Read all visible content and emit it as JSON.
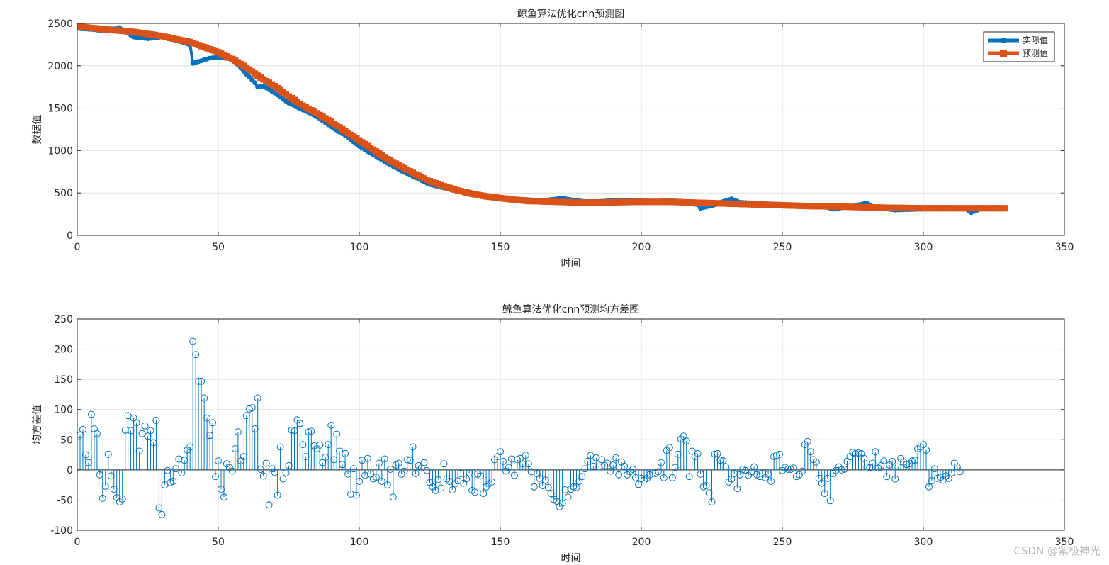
{
  "colors": {
    "actual": "#0072BD",
    "predicted": "#D95319",
    "stem": "#0072BD"
  },
  "watermark": "CSDN @紫极神光",
  "chart_data": [
    {
      "type": "line",
      "title": "鲸鱼算法优化cnn预测图",
      "xlabel": "时间",
      "ylabel": "数据值",
      "xlim": [
        0,
        350
      ],
      "ylim": [
        0,
        2500
      ],
      "xticks": [
        0,
        50,
        100,
        150,
        200,
        250,
        300,
        350
      ],
      "yticks": [
        0,
        500,
        1000,
        1500,
        2000,
        2500
      ],
      "grid": true,
      "legend_position": "top-right",
      "x_start": 1,
      "x_step": 1,
      "series": [
        {
          "name": "实际值",
          "marker": "circle",
          "anchors": [
            [
              1,
              2440
            ],
            [
              5,
              2430
            ],
            [
              10,
              2410
            ],
            [
              15,
              2450
            ],
            [
              20,
              2340
            ],
            [
              25,
              2320
            ],
            [
              30,
              2340
            ],
            [
              35,
              2300
            ],
            [
              40,
              2250
            ],
            [
              41,
              2030
            ],
            [
              43,
              2050
            ],
            [
              47,
              2090
            ],
            [
              50,
              2100
            ],
            [
              55,
              2080
            ],
            [
              60,
              1900
            ],
            [
              63,
              1800
            ],
            [
              64,
              1750
            ],
            [
              66,
              1760
            ],
            [
              70,
              1680
            ],
            [
              75,
              1560
            ],
            [
              80,
              1480
            ],
            [
              85,
              1400
            ],
            [
              90,
              1280
            ],
            [
              95,
              1180
            ],
            [
              100,
              1050
            ],
            [
              105,
              950
            ],
            [
              110,
              850
            ],
            [
              115,
              760
            ],
            [
              120,
              680
            ],
            [
              125,
              600
            ],
            [
              130,
              560
            ],
            [
              135,
              520
            ],
            [
              140,
              490
            ],
            [
              145,
              470
            ],
            [
              150,
              450
            ],
            [
              155,
              430
            ],
            [
              160,
              420
            ],
            [
              165,
              410
            ],
            [
              170,
              430
            ],
            [
              172,
              440
            ],
            [
              175,
              420
            ],
            [
              180,
              400
            ],
            [
              185,
              400
            ],
            [
              190,
              410
            ],
            [
              195,
              410
            ],
            [
              200,
              410
            ],
            [
              205,
              400
            ],
            [
              210,
              410
            ],
            [
              215,
              400
            ],
            [
              220,
              360
            ],
            [
              221,
              320
            ],
            [
              225,
              350
            ],
            [
              230,
              410
            ],
            [
              232,
              430
            ],
            [
              235,
              390
            ],
            [
              240,
              380
            ],
            [
              245,
              370
            ],
            [
              250,
              365
            ],
            [
              255,
              355
            ],
            [
              260,
              345
            ],
            [
              265,
              340
            ],
            [
              268,
              310
            ],
            [
              270,
              320
            ],
            [
              275,
              345
            ],
            [
              280,
              380
            ],
            [
              282,
              340
            ],
            [
              285,
              320
            ],
            [
              290,
              300
            ],
            [
              295,
              305
            ],
            [
              300,
              310
            ],
            [
              305,
              320
            ],
            [
              310,
              330
            ],
            [
              315,
              310
            ],
            [
              317,
              270
            ],
            [
              320,
              310
            ],
            [
              325,
              320
            ],
            [
              329,
              320
            ]
          ]
        },
        {
          "name": "预测值",
          "marker": "square",
          "anchors": [
            [
              1,
              2460
            ],
            [
              10,
              2430
            ],
            [
              20,
              2400
            ],
            [
              30,
              2350
            ],
            [
              40,
              2280
            ],
            [
              45,
              2220
            ],
            [
              50,
              2160
            ],
            [
              55,
              2080
            ],
            [
              60,
              1980
            ],
            [
              65,
              1860
            ],
            [
              70,
              1760
            ],
            [
              75,
              1640
            ],
            [
              80,
              1530
            ],
            [
              85,
              1440
            ],
            [
              90,
              1340
            ],
            [
              95,
              1230
            ],
            [
              100,
              1120
            ],
            [
              105,
              1010
            ],
            [
              110,
              900
            ],
            [
              115,
              810
            ],
            [
              120,
              720
            ],
            [
              125,
              640
            ],
            [
              130,
              580
            ],
            [
              135,
              530
            ],
            [
              140,
              490
            ],
            [
              145,
              460
            ],
            [
              150,
              440
            ],
            [
              155,
              420
            ],
            [
              160,
              405
            ],
            [
              170,
              395
            ],
            [
              180,
              385
            ],
            [
              190,
              390
            ],
            [
              200,
              395
            ],
            [
              210,
              395
            ],
            [
              220,
              385
            ],
            [
              230,
              375
            ],
            [
              240,
              365
            ],
            [
              250,
              355
            ],
            [
              260,
              345
            ],
            [
              270,
              340
            ],
            [
              280,
              330
            ],
            [
              290,
              325
            ],
            [
              300,
              320
            ],
            [
              310,
              320
            ],
            [
              320,
              320
            ],
            [
              329,
              320
            ]
          ]
        }
      ]
    },
    {
      "type": "stem",
      "title": "鲸鱼算法优化cnn预测均方差图",
      "xlabel": "时间",
      "ylabel": "均方差值",
      "xlim": [
        0,
        350
      ],
      "ylim": [
        -100,
        250
      ],
      "xticks": [
        0,
        50,
        100,
        150,
        200,
        250,
        300,
        350
      ],
      "yticks": [
        -100,
        -50,
        0,
        50,
        100,
        150,
        200,
        250
      ],
      "grid": true,
      "x_start": 1,
      "x_step": 1,
      "values": [
        58,
        67,
        25,
        12,
        92,
        68,
        60,
        -8,
        -47,
        -27,
        26,
        -10,
        -32,
        -46,
        -53,
        -48,
        66,
        90,
        65,
        86,
        78,
        31,
        60,
        73,
        56,
        65,
        45,
        82,
        -63,
        -74,
        -25,
        -1,
        -21,
        -19,
        2,
        18,
        -5,
        16,
        33,
        38,
        213,
        191,
        147,
        147,
        119,
        86,
        57,
        78,
        -11,
        15,
        -32,
        -45,
        10,
        4,
        -2,
        35,
        63,
        15,
        22,
        90,
        101,
        103,
        68,
        119,
        1,
        -10,
        11,
        -58,
        2,
        -4,
        -42,
        38,
        -15,
        -5,
        7,
        66,
        65,
        83,
        77,
        42,
        22,
        63,
        64,
        40,
        35,
        41,
        12,
        21,
        42,
        74,
        17,
        59,
        31,
        9,
        27,
        -7,
        -40,
        2,
        -42,
        -19,
        16,
        -9,
        19,
        -7,
        -15,
        -12,
        11,
        -19,
        18,
        -25,
        1,
        -45,
        8,
        11,
        -7,
        -2,
        17,
        16,
        38,
        -6,
        7,
        3,
        12,
        -1,
        -21,
        -28,
        -34,
        -16,
        -30,
        10,
        -15,
        -19,
        -33,
        -23,
        -18,
        -6,
        -22,
        -15,
        -5,
        -34,
        -37,
        -7,
        -10,
        -39,
        -28,
        -23,
        -20,
        17,
        22,
        30,
        14,
        -2,
        4,
        18,
        -9,
        17,
        19,
        10,
        24,
        10,
        -3,
        -28,
        -6,
        -14,
        -26,
        -17,
        -29,
        -39,
        -49,
        -52,
        -61,
        -55,
        -33,
        -45,
        -32,
        -28,
        -29,
        -19,
        -11,
        2,
        14,
        24,
        6,
        20,
        5,
        17,
        7,
        11,
        -2,
        8,
        20,
        -8,
        13,
        6,
        -8,
        -3,
        1,
        -13,
        -24,
        -14,
        -17,
        -14,
        -8,
        -5,
        -6,
        -3,
        12,
        -13,
        32,
        37,
        -13,
        4,
        26,
        51,
        56,
        48,
        -11,
        31,
        22,
        27,
        -7,
        -28,
        -26,
        -38,
        -53,
        26,
        27,
        16,
        15,
        5,
        -20,
        -15,
        -6,
        -31,
        -8,
        1,
        -1,
        -9,
        -3,
        5,
        -8,
        -11,
        -6,
        -13,
        -7,
        -19,
        22,
        24,
        26,
        -1,
        4,
        1,
        1,
        3,
        -11,
        -8,
        -2,
        42,
        47,
        30,
        17,
        13,
        -14,
        -22,
        -39,
        -14,
        -51,
        -6,
        -1,
        5,
        0,
        1,
        14,
        22,
        29,
        27,
        28,
        27,
        19,
        5,
        4,
        11,
        30,
        3,
        7,
        15,
        -11,
        8,
        14,
        -15,
        5,
        19,
        13,
        9,
        10,
        15,
        16,
        35,
        38,
        42,
        33,
        -28,
        -18,
        2,
        -14,
        -12,
        -17,
        -10,
        -14,
        -5,
        11,
        5,
        -3
      ]
    }
  ]
}
